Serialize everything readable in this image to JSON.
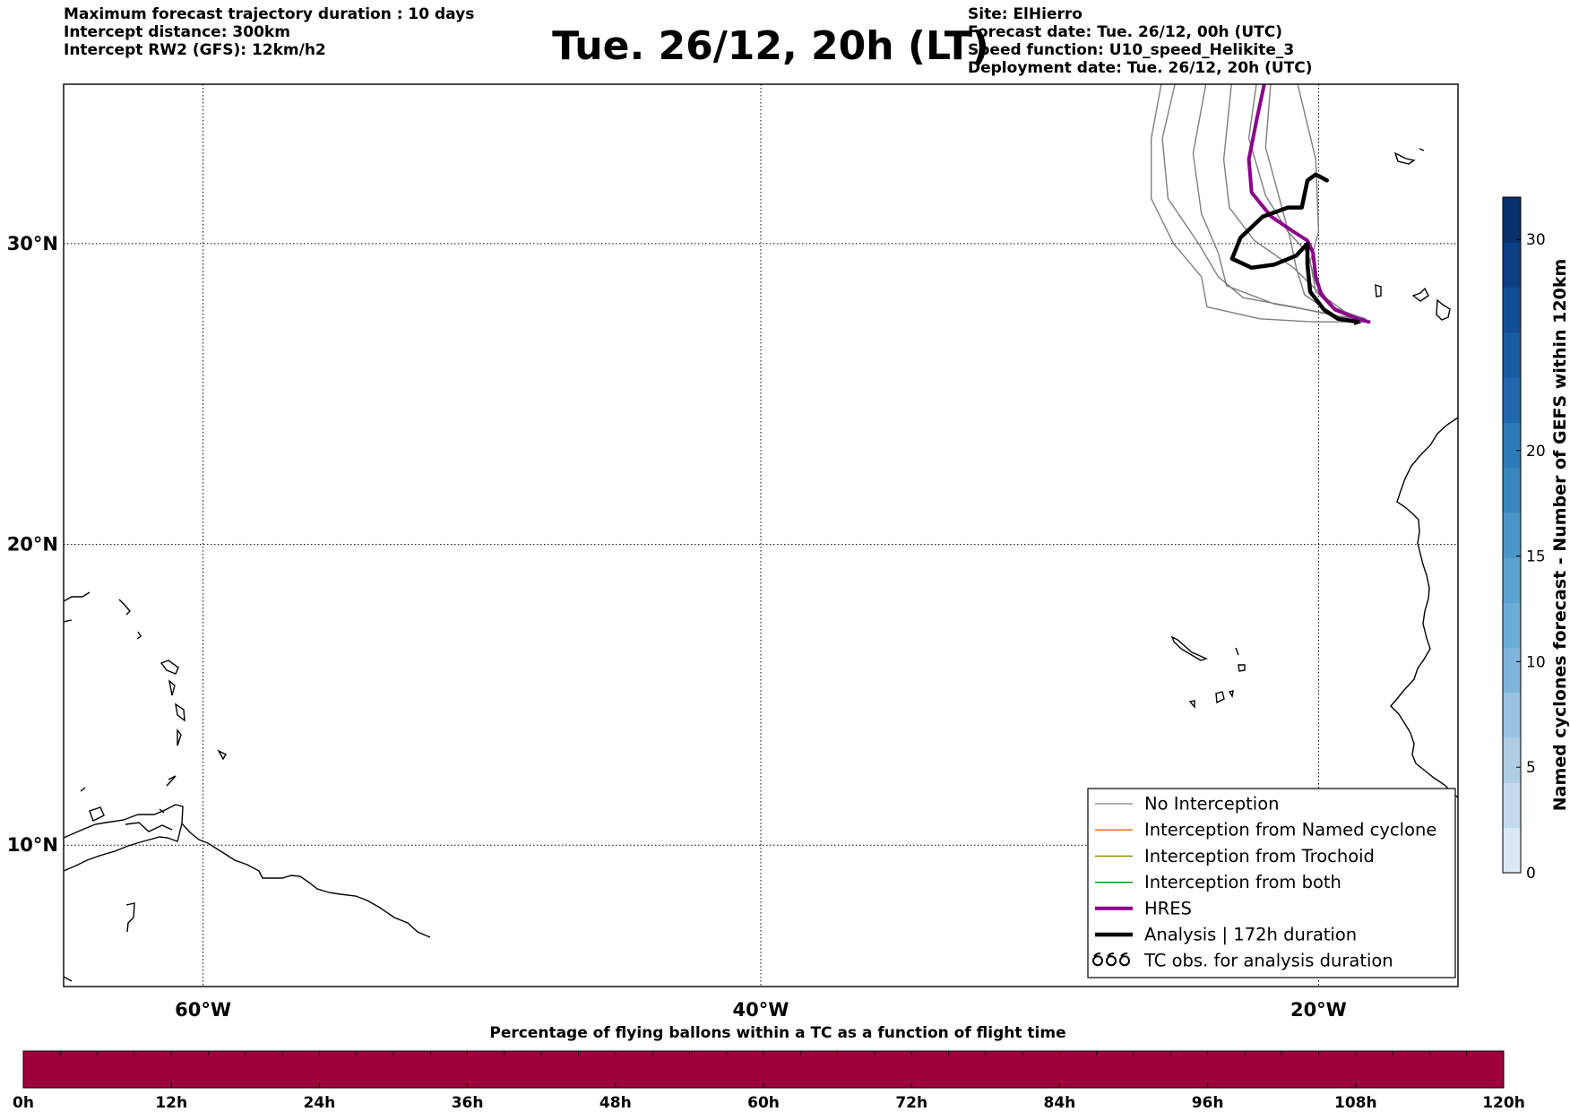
{
  "header_left": {
    "line1": "Maximum forecast trajectory duration : 10 days",
    "line2": "Intercept distance: 300km",
    "line3": "Intercept RW2 (GFS):  12km/h2"
  },
  "title": "Tue. 26/12, 20h (LT)",
  "header_right": {
    "line1": "Site: ElHierro",
    "line2": "Forecast date: Tue. 26/12, 00h (UTC)",
    "line3": "Speed function: U10_speed_Helikite_3",
    "line4": "Deployment date: Tue. 26/12, 20h (UTC)"
  },
  "map": {
    "lat_labels": [
      {
        "value": 30,
        "label": "30°N"
      },
      {
        "value": 20,
        "label": "20°N"
      },
      {
        "value": 10,
        "label": "10°N"
      }
    ],
    "lon_labels": [
      {
        "value": -60,
        "label": "60°W"
      },
      {
        "value": -40,
        "label": "40°W"
      },
      {
        "value": -20,
        "label": "20°W"
      }
    ],
    "extent": {
      "lon_min": -65,
      "lon_max": -15,
      "lat_min": 5.3,
      "lat_max": 35.3
    }
  },
  "legend": {
    "items": [
      {
        "label": "No Interception",
        "color": "#7f7f7f"
      },
      {
        "label": "Interception from Named cyclone",
        "color": "#ff5a1f"
      },
      {
        "label": "Interception from Trochoid",
        "color": "#808000"
      },
      {
        "label": "Interception from both",
        "color": "#008000"
      },
      {
        "label": "HRES",
        "color": "#8b008b"
      },
      {
        "label": "Analysis | 172h duration",
        "color": "#000000"
      },
      {
        "label": "TC obs. for analysis duration",
        "color": "#000000"
      }
    ]
  },
  "colorbar_right": {
    "label": "Named cyclones forecast - Number of GEFS within 120km",
    "ticks": [
      {
        "value": 0,
        "label": "0"
      },
      {
        "value": 5,
        "label": "5"
      },
      {
        "value": 10,
        "label": "10"
      },
      {
        "value": 15,
        "label": "15"
      },
      {
        "value": 20,
        "label": "20"
      },
      {
        "value": 30,
        "label": "30"
      }
    ],
    "colors": [
      "#dbe8f6",
      "#c6dbef",
      "#b0cde6",
      "#9ac3e1",
      "#7fb5da",
      "#6aaed6",
      "#5aa2cf",
      "#4a96c8",
      "#3a86bf",
      "#2c7ab7",
      "#2068ab",
      "#1a5ca0",
      "#114f95",
      "#0b3f83",
      "#08306b"
    ]
  },
  "bottom_bar": {
    "title": "Percentage of flying ballons within a TC as a function of flight time",
    "color": "#9e003a",
    "ticks": [
      "0h",
      "12h",
      "24h",
      "36h",
      "48h",
      "60h",
      "72h",
      "84h",
      "96h",
      "108h",
      "120h"
    ]
  },
  "tracks": {
    "gefs_no_interception": [
      [
        [
          -21.7,
          35.5
        ],
        [
          -21.9,
          33.2
        ],
        [
          -21.4,
          31.5
        ],
        [
          -21.0,
          30.1
        ],
        [
          -20.8,
          29.2
        ],
        [
          -20.5,
          28.3
        ],
        [
          -19.4,
          27.6
        ],
        [
          -18.3,
          27.4
        ]
      ],
      [
        [
          -20.8,
          35.5
        ],
        [
          -20.1,
          32.8
        ],
        [
          -20.0,
          30.4
        ],
        [
          -20.3,
          29.4
        ],
        [
          -20.1,
          28.4
        ],
        [
          -19.2,
          27.7
        ],
        [
          -18.4,
          27.5
        ]
      ],
      [
        [
          -23.1,
          35.5
        ],
        [
          -23.4,
          32.8
        ],
        [
          -23.2,
          31.2
        ],
        [
          -22.3,
          30.1
        ],
        [
          -20.9,
          29.2
        ],
        [
          -19.9,
          28.3
        ],
        [
          -19.0,
          27.7
        ],
        [
          -18.3,
          27.5
        ]
      ],
      [
        [
          -24.0,
          35.5
        ],
        [
          -24.5,
          33.0
        ],
        [
          -24.2,
          31.0
        ],
        [
          -23.6,
          29.7
        ],
        [
          -23.3,
          28.6
        ],
        [
          -21.6,
          28.0
        ],
        [
          -19.8,
          27.7
        ],
        [
          -18.4,
          27.4
        ]
      ],
      [
        [
          -22.2,
          35.5
        ],
        [
          -22.5,
          33.5
        ],
        [
          -21.9,
          31.6
        ],
        [
          -21.1,
          30.4
        ],
        [
          -20.4,
          29.7
        ],
        [
          -20.1,
          28.7
        ],
        [
          -19.5,
          27.9
        ],
        [
          -18.4,
          27.5
        ]
      ],
      [
        [
          -25.1,
          35.5
        ],
        [
          -25.6,
          33.5
        ],
        [
          -25.4,
          31.5
        ],
        [
          -24.3,
          30.0
        ],
        [
          -23.6,
          28.9
        ],
        [
          -22.7,
          28.2
        ],
        [
          -20.9,
          27.9
        ],
        [
          -19.4,
          27.6
        ],
        [
          -18.3,
          27.5
        ]
      ],
      [
        [
          -25.6,
          35.5
        ],
        [
          -26.0,
          33.5
        ],
        [
          -26.0,
          31.5
        ],
        [
          -25.2,
          30.0
        ],
        [
          -24.2,
          28.9
        ],
        [
          -24.0,
          27.9
        ],
        [
          -22.1,
          27.5
        ],
        [
          -20.2,
          27.4
        ],
        [
          -18.3,
          27.4
        ]
      ]
    ],
    "hres": [
      [
        -21.9,
        35.5
      ],
      [
        -22.2,
        34.2
      ],
      [
        -22.5,
        32.8
      ],
      [
        -22.4,
        31.7
      ],
      [
        -21.7,
        30.9
      ],
      [
        -20.9,
        30.4
      ],
      [
        -20.4,
        30.1
      ],
      [
        -20.2,
        29.7
      ],
      [
        -20.1,
        28.9
      ],
      [
        -19.9,
        28.3
      ],
      [
        -19.4,
        27.8
      ],
      [
        -18.6,
        27.5
      ],
      [
        -18.2,
        27.4
      ]
    ],
    "analysis": [
      [
        -18.6,
        27.4
      ],
      [
        -19.3,
        27.5
      ],
      [
        -19.8,
        27.8
      ],
      [
        -20.3,
        28.4
      ],
      [
        -20.4,
        29.3
      ],
      [
        -20.4,
        30.0
      ],
      [
        -20.8,
        29.6
      ],
      [
        -21.6,
        29.3
      ],
      [
        -22.4,
        29.2
      ],
      [
        -23.1,
        29.5
      ],
      [
        -22.8,
        30.2
      ],
      [
        -22.0,
        30.9
      ],
      [
        -21.1,
        31.2
      ],
      [
        -20.6,
        31.2
      ],
      [
        -20.4,
        32.1
      ],
      [
        -20.1,
        32.3
      ],
      [
        -19.7,
        32.1
      ]
    ]
  }
}
